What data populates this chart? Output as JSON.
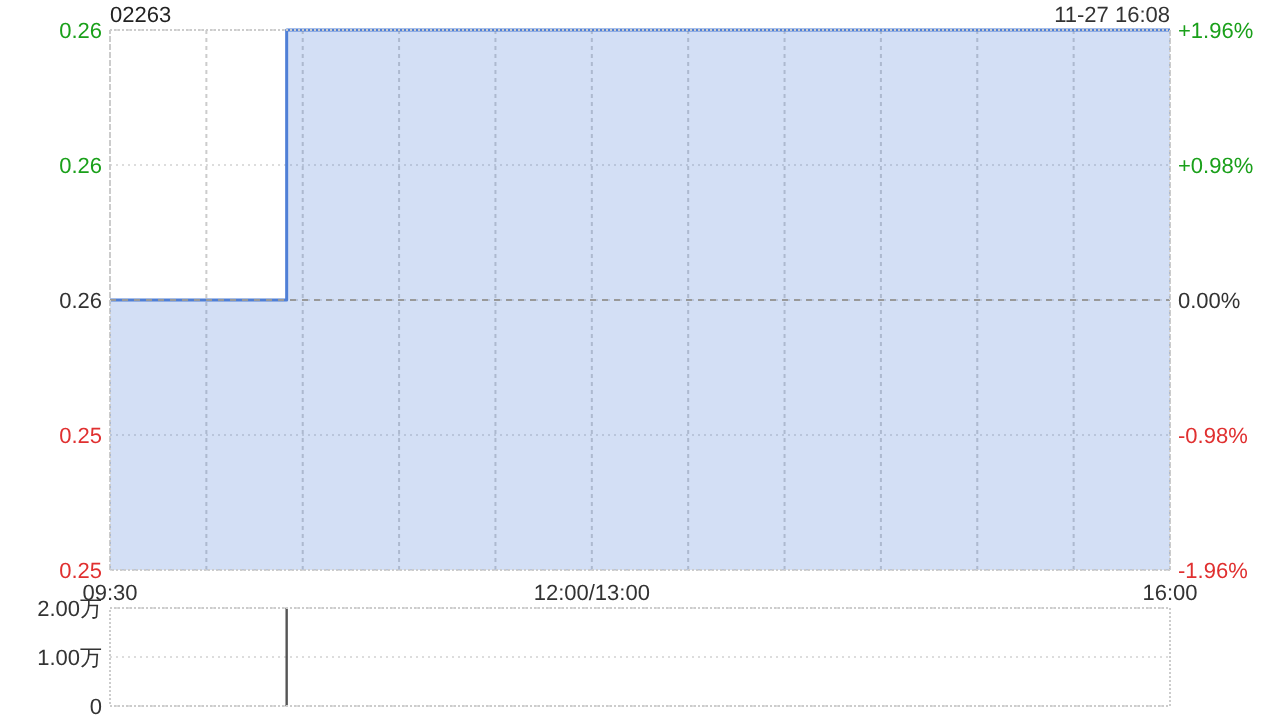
{
  "chart_data": [
    {
      "type": "step",
      "title": "02263",
      "annotations": [
        "11-27 16:08"
      ],
      "categories": [
        null,
        null,
        null,
        null,
        null,
        null,
        null,
        null,
        null,
        null,
        null,
        null,
        null,
        null,
        null,
        null,
        null,
        null,
        null,
        null,
        null,
        null,
        null,
        null,
        null,
        null,
        null,
        null,
        null,
        null,
        null,
        null,
        null,
        null,
        null,
        null,
        null,
        null,
        null,
        null,
        null,
        null,
        null,
        null,
        null,
        null,
        null,
        null,
        null,
        null,
        null,
        null,
        null,
        null,
        null,
        null,
        null,
        null,
        null,
        null,
        null,
        null,
        null,
        null,
        null,
        null,
        null
      ],
      "series": [
        {
          "color": "#4f7fd6",
          "values": [
            0.255,
            0.255,
            0.255,
            0.255,
            0.255,
            0.255,
            0.255,
            0.255,
            0.255,
            0.255,
            0.255,
            0.26,
            0.26,
            0.26,
            0.26,
            0.26,
            0.26,
            0.26,
            0.26,
            0.26,
            0.26,
            0.26,
            0.26,
            0.26,
            0.26,
            0.26,
            0.26,
            0.26,
            0.26,
            0.26,
            0.26,
            0.26,
            0.26,
            0.26,
            0.26,
            0.26,
            0.26,
            0.26,
            0.26,
            0.26,
            0.26,
            0.26,
            0.26,
            0.26,
            0.26,
            0.26,
            0.26,
            0.26,
            0.26,
            0.26,
            0.26,
            0.26,
            0.26,
            0.26,
            0.26,
            0.26,
            0.26,
            0.26,
            0.26,
            0.26,
            0.26,
            0.26,
            0.26,
            0.26,
            0.26,
            0.26,
            0.26
          ]
        }
      ],
      "ylim": [
        0.25,
        0.26
      ],
      "yticks": [
        {
          "value": 0.25,
          "label": "0.25"
        },
        {
          "value": 0.2525,
          "label": "0.25"
        },
        {
          "value": 0.255,
          "label": "0.26"
        },
        {
          "value": 0.2575,
          "label": "0.26"
        },
        {
          "value": 0.26,
          "label": "0.26"
        }
      ],
      "y2lim": [
        -1.96,
        1.96
      ],
      "y2ticks": [
        {
          "value": -1.96,
          "label": "-1.96%"
        },
        {
          "value": -0.98,
          "label": "-0.98%"
        },
        {
          "value": 0,
          "label": "0.00%"
        },
        {
          "value": 0.98,
          "label": "+0.98%"
        },
        {
          "value": 1.96,
          "label": "+1.96%"
        }
      ],
      "ref_lines": [
        {
          "axis": "y",
          "value": 0.255,
          "label": null,
          "color": "#999999",
          "line_style": "dashed"
        }
      ],
      "grid": true,
      "tick_labels": "y"
    },
    {
      "type": "bar",
      "categories": [
        "09:30",
        null,
        null,
        null,
        null,
        null,
        null,
        null,
        null,
        null,
        null,
        null,
        null,
        null,
        null,
        null,
        null,
        null,
        null,
        null,
        null,
        null,
        null,
        null,
        null,
        null,
        null,
        null,
        null,
        null,
        "12:00/13:00",
        null,
        null,
        null,
        null,
        null,
        null,
        null,
        null,
        null,
        null,
        null,
        null,
        null,
        null,
        null,
        null,
        null,
        null,
        null,
        null,
        null,
        null,
        null,
        null,
        null,
        null,
        null,
        null,
        null,
        null,
        null,
        null,
        null,
        null,
        null,
        "16:00"
      ],
      "series": [
        {
          "color": "#555555",
          "values": [
            null,
            null,
            null,
            null,
            null,
            null,
            null,
            null,
            null,
            null,
            null,
            2,
            null,
            null,
            null,
            null,
            null,
            null,
            null,
            null,
            null,
            null,
            null,
            null,
            null,
            null,
            null,
            null,
            null,
            null,
            null,
            null,
            null,
            null,
            null,
            null,
            null,
            null,
            null,
            null,
            null,
            null,
            null,
            null,
            null,
            null,
            null,
            null,
            null,
            null,
            null,
            null,
            null,
            null,
            null,
            null,
            null,
            null,
            null,
            null,
            null,
            null,
            null,
            null,
            null,
            null,
            null
          ]
        }
      ],
      "ylim": [
        0,
        2
      ],
      "yticks": [
        {
          "value": 0,
          "label": "0"
        },
        {
          "value": 1,
          "label": "1.00万"
        },
        {
          "value": 2,
          "label": "2.00万"
        }
      ],
      "grid": "y"
    }
  ]
}
